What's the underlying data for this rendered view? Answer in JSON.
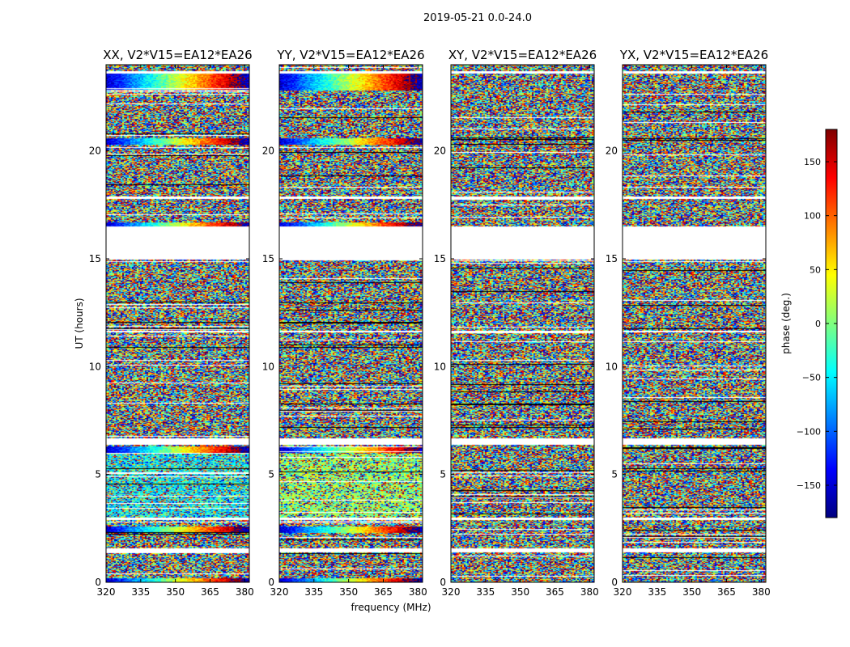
{
  "chart_data": {
    "type": "heatmap",
    "suptitle": "2019-05-21 0.0-24.0",
    "xlabel": "frequency (MHz)",
    "ylabel": "UT (hours)",
    "xlim": [
      320,
      382
    ],
    "ylim": [
      0,
      24
    ],
    "xticks": [
      320,
      335,
      350,
      365,
      380
    ],
    "yticks": [
      0,
      5,
      10,
      15,
      20
    ],
    "colorbar": {
      "label": "phase (deg.)",
      "range": [
        -180,
        180
      ],
      "ticks": [
        150,
        100,
        50,
        0,
        -50,
        -100,
        -150
      ],
      "colormap": "jet",
      "stops": [
        "#00007f",
        "#0000ff",
        "#007fff",
        "#00ffff",
        "#7fff7f",
        "#ffff00",
        "#ff7f00",
        "#ff0000",
        "#7f0000"
      ]
    },
    "panels": [
      {
        "title": "XX, V2*V15=EA12*EA26",
        "coherent": true
      },
      {
        "title": "YY, V2*V15=EA12*EA26",
        "coherent": true
      },
      {
        "title": "XY, V2*V15=EA12*EA26",
        "coherent": false
      },
      {
        "title": "YX, V2*V15=EA12*EA26",
        "coherent": false
      }
    ],
    "gaps_hours": [
      [
        15.0,
        16.5
      ],
      [
        6.4,
        6.7
      ],
      [
        1.4,
        1.6
      ],
      [
        23.6,
        23.7
      ],
      [
        17.8,
        17.9
      ],
      [
        11.6,
        11.7
      ],
      [
        2.9,
        3.0
      ]
    ]
  }
}
